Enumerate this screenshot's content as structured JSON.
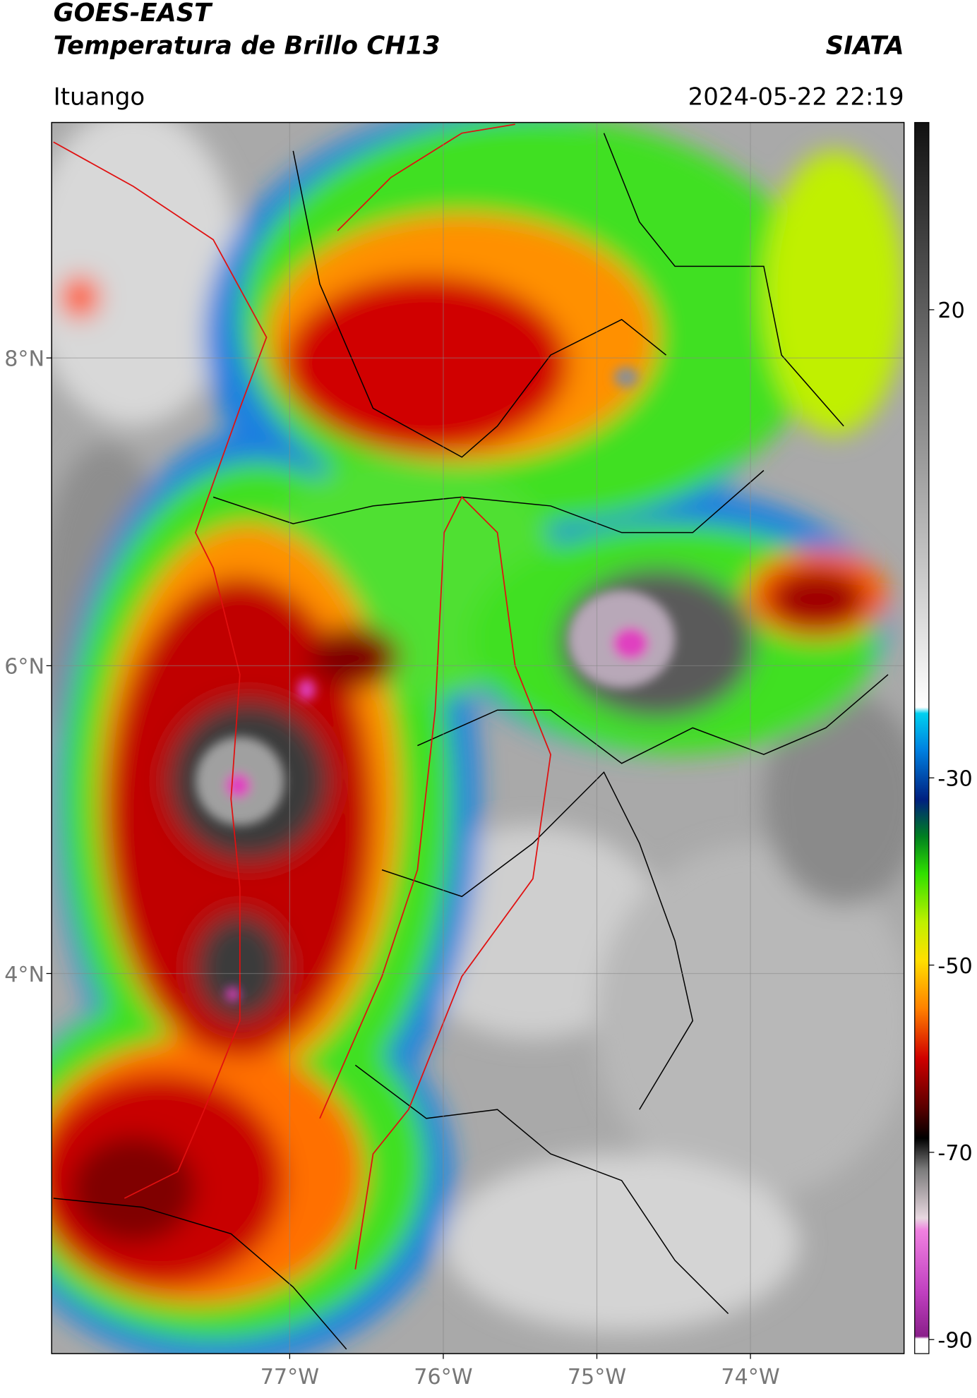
{
  "header": {
    "title_line1": "GOES-EAST",
    "title_line2": "Temperatura de Brillo CH13",
    "source": "SIATA",
    "location": "Ituango",
    "datetime": "2024-05-22 22:19"
  },
  "map": {
    "xlim": [
      -78.55,
      -73.0
    ],
    "ylim": [
      1.53,
      9.53
    ],
    "xticks": [
      {
        "value": -77,
        "label": "77°W"
      },
      {
        "value": -76,
        "label": "76°W"
      },
      {
        "value": -75,
        "label": "75°W"
      },
      {
        "value": -74,
        "label": "74°W"
      }
    ],
    "yticks": [
      {
        "value": 8,
        "label": "8°N"
      },
      {
        "value": 6,
        "label": "6°N"
      },
      {
        "value": 4,
        "label": "4°N"
      }
    ],
    "grid": true
  },
  "colorbar": {
    "clim": [
      -91.5,
      40
    ],
    "ticks": [
      20,
      -30,
      -50,
      -70,
      -90
    ]
  }
}
